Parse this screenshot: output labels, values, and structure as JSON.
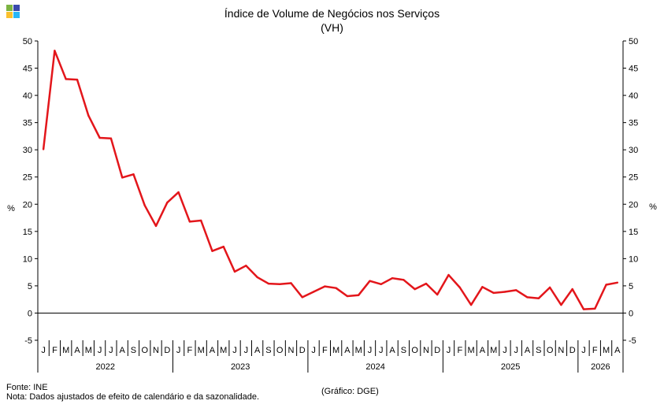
{
  "chart_data": {
    "type": "line",
    "title": "Índice de Volume de Negócios nos Serviços",
    "subtitle": "(VH)",
    "ylabel": "%",
    "ylim": [
      -5,
      50
    ],
    "yticks": [
      -5,
      0,
      5,
      10,
      15,
      20,
      25,
      30,
      35,
      40,
      45,
      50
    ],
    "grid": false,
    "legend": "none",
    "x_month_labels": [
      "J",
      "F",
      "M",
      "A",
      "M",
      "J",
      "J",
      "A",
      "S",
      "O",
      "N",
      "D"
    ],
    "x_year_labels": [
      "2022",
      "2023",
      "2024",
      "2025",
      "2026"
    ],
    "series": [
      {
        "name": "",
        "color": "#e3161b",
        "x": [
          "2022-01",
          "2022-02",
          "2022-03",
          "2022-04",
          "2022-05",
          "2022-06",
          "2022-07",
          "2022-08",
          "2022-09",
          "2022-10",
          "2022-11",
          "2022-12",
          "2023-01",
          "2023-02",
          "2023-03",
          "2023-04",
          "2023-05",
          "2023-06",
          "2023-07",
          "2023-08",
          "2023-09",
          "2023-10",
          "2023-11",
          "2023-12",
          "2024-01",
          "2024-02",
          "2024-03",
          "2024-04",
          "2024-05",
          "2024-06",
          "2024-07",
          "2024-08",
          "2024-09",
          "2024-10",
          "2024-11",
          "2024-12",
          "2025-01",
          "2025-02",
          "2025-03",
          "2025-04",
          "2025-05",
          "2025-06",
          "2025-07",
          "2025-08",
          "2025-09",
          "2025-10",
          "2025-11",
          "2025-12",
          "2026-01",
          "2026-02",
          "2026-03",
          "2026-04"
        ],
        "values": [
          30.1,
          48.2,
          43.0,
          42.9,
          36.3,
          32.2,
          32.1,
          24.9,
          25.5,
          19.8,
          16.0,
          20.3,
          22.2,
          16.8,
          17.0,
          11.4,
          12.2,
          7.6,
          8.7,
          6.6,
          5.4,
          5.3,
          5.5,
          2.9,
          3.9,
          4.9,
          4.6,
          3.1,
          3.3,
          5.9,
          5.3,
          6.4,
          6.1,
          4.4,
          5.4,
          3.4,
          7.0,
          4.7,
          1.5,
          4.8,
          3.7,
          3.9,
          4.2,
          2.9,
          2.7,
          4.7,
          1.5,
          4.4,
          0.7,
          0.8,
          5.2,
          5.6
        ]
      }
    ]
  },
  "footer": {
    "source": "Fonte: INE",
    "note": "Nota: Dados ajustados de efeito de calendário e da sazonalidade.",
    "credit": "(Gráfico: DGE)"
  },
  "logo_colors": [
    "#7cb342",
    "#3949ab",
    "#fbc02d",
    "#29b6f6"
  ]
}
